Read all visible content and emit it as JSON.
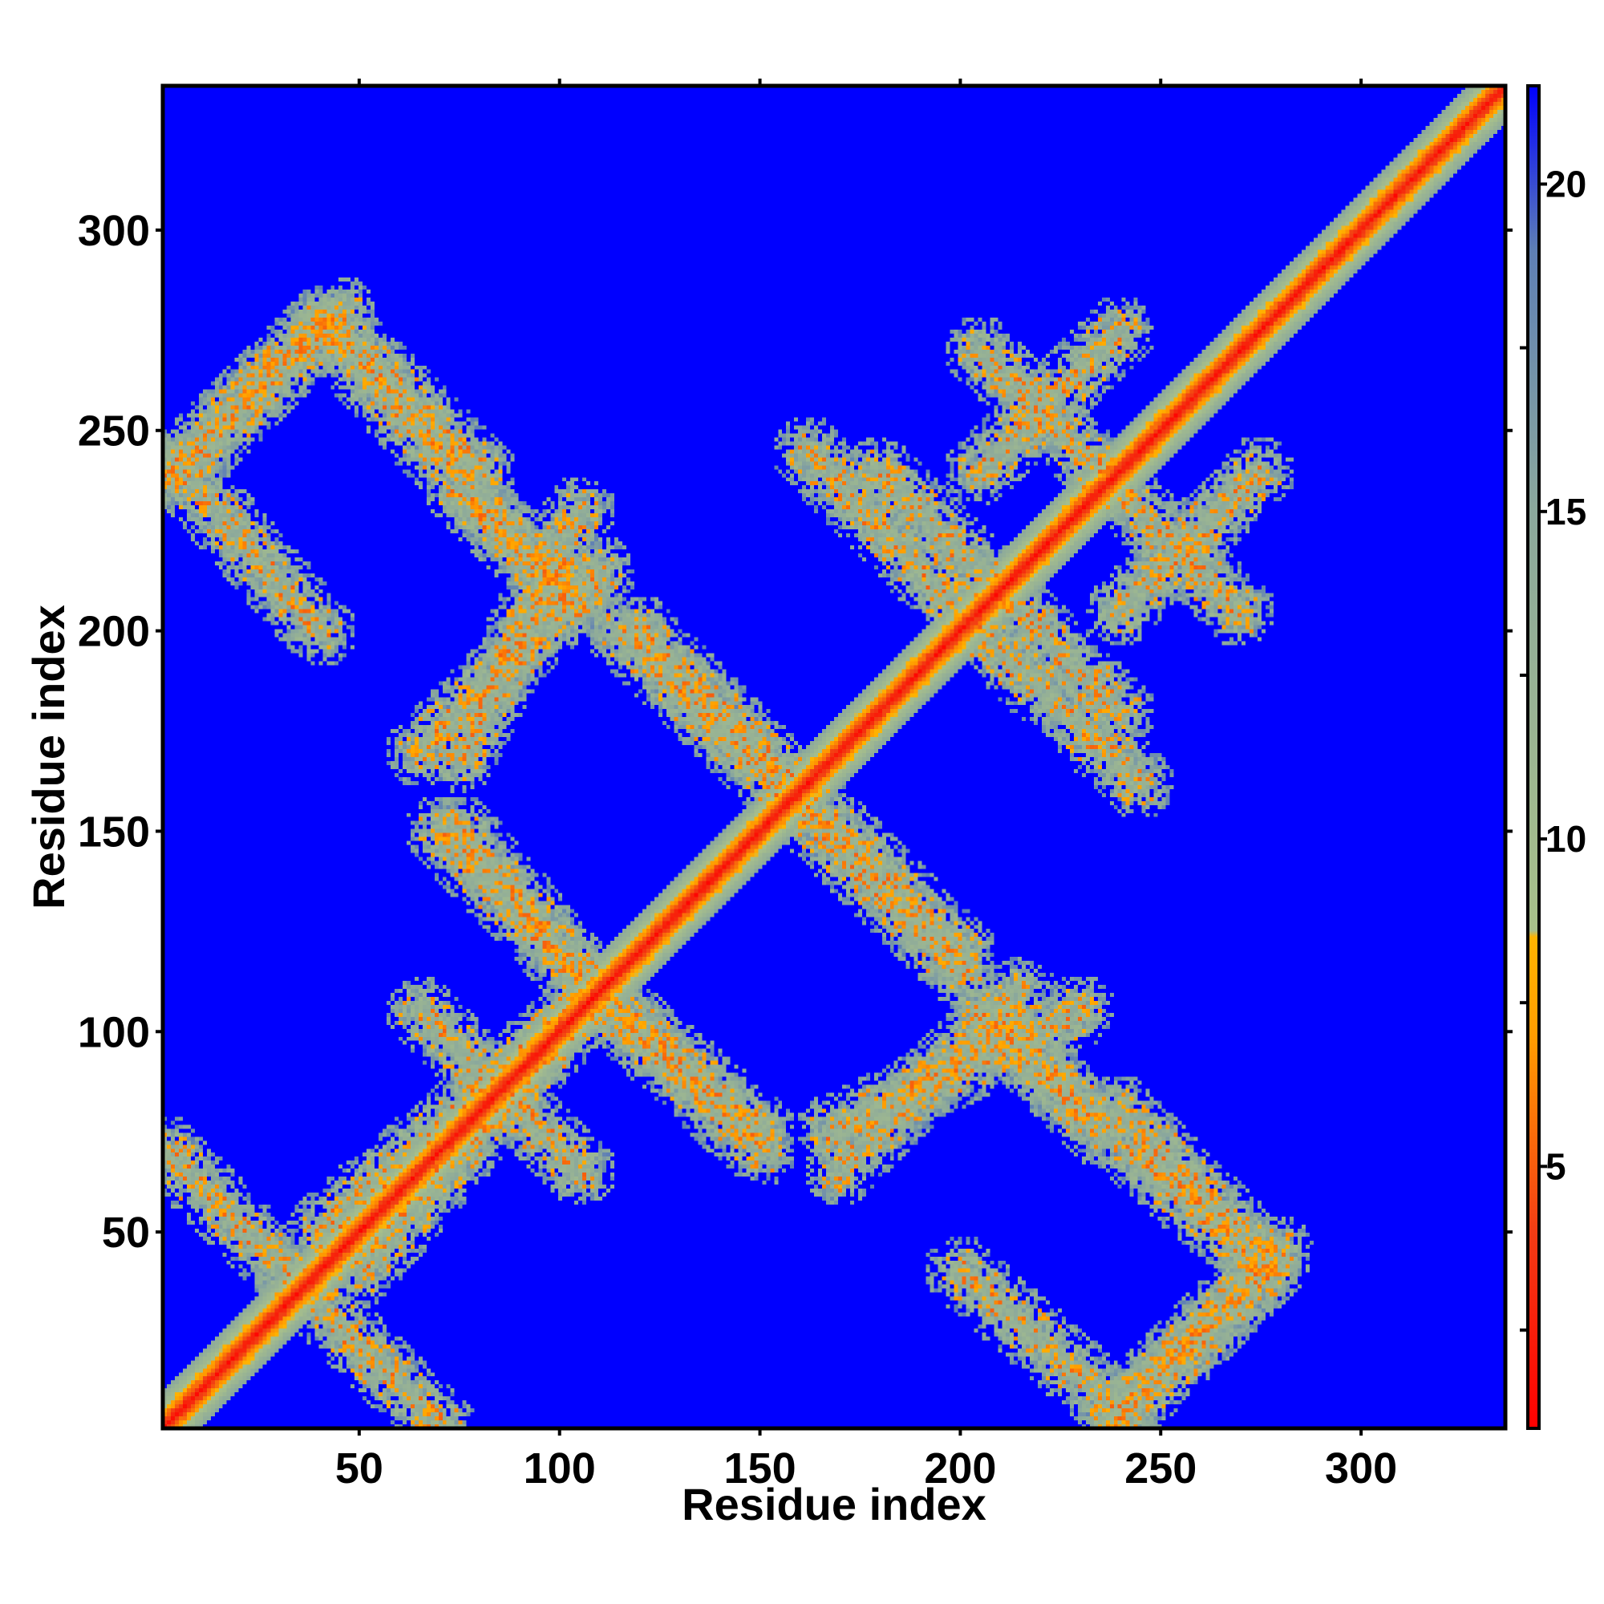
{
  "chart_data": {
    "type": "heatmap",
    "title": "",
    "xlabel": "Residue index",
    "ylabel": "Residue index",
    "xlim": [
      1,
      336
    ],
    "ylim": [
      1,
      336
    ],
    "x_ticks": [
      50,
      100,
      150,
      200,
      250,
      300
    ],
    "y_ticks": [
      50,
      100,
      150,
      200,
      250,
      300
    ],
    "x_tick_labels": [
      "50",
      "100",
      "150",
      "200",
      "250",
      "300"
    ],
    "y_tick_labels": [
      "50",
      "100",
      "150",
      "200",
      "250",
      "300"
    ],
    "colorbar": {
      "range": [
        1,
        21.5
      ],
      "ticks": [
        5,
        10,
        15,
        20
      ],
      "tick_labels": [
        "5",
        "10",
        "15",
        "20"
      ],
      "colors": [
        {
          "value": 1,
          "color": "#ff0000"
        },
        {
          "value": 4,
          "color": "#f23c14"
        },
        {
          "value": 7,
          "color": "#ff9d00"
        },
        {
          "value": 8.5,
          "color": "#ffb400"
        },
        {
          "value": 8.6,
          "color": "#a8c08a"
        },
        {
          "value": 15,
          "color": "#8ba89c"
        },
        {
          "value": 19,
          "color": "#5e7fb5"
        },
        {
          "value": 21.5,
          "color": "#0000ff"
        }
      ]
    },
    "background_value": 21.5,
    "diagonal": {
      "from": 1,
      "to": 336,
      "core_value": 2,
      "band_width": 7
    },
    "contact_bands": [
      {
        "i_start": 1,
        "i_end": 70,
        "j_start": 70,
        "j_end": 1
      },
      {
        "i_start": 40,
        "i_end": 1,
        "j_start": 277,
        "j_end": 238
      },
      {
        "i_start": 40,
        "i_end": 70,
        "j_start": 277,
        "j_end": 243
      },
      {
        "i_start": 65,
        "i_end": 105,
        "j_start": 105,
        "j_end": 65
      },
      {
        "i_start": 75,
        "i_end": 105,
        "j_start": 150,
        "j_end": 115
      },
      {
        "i_start": 40,
        "i_end": 110,
        "j_start": 50,
        "j_end": 110
      },
      {
        "i_start": 110,
        "i_end": 150,
        "j_start": 108,
        "j_end": 70
      },
      {
        "i_start": 65,
        "i_end": 110,
        "j_start": 170,
        "j_end": 215
      },
      {
        "i_start": 80,
        "i_end": 105,
        "j_start": 230,
        "j_end": 205
      },
      {
        "i_start": 120,
        "i_end": 160,
        "j_start": 200,
        "j_end": 160
      },
      {
        "i_start": 160,
        "i_end": 200,
        "j_start": 155,
        "j_end": 115
      },
      {
        "i_start": 168,
        "i_end": 230,
        "j_start": 75,
        "j_end": 105
      },
      {
        "i_start": 210,
        "i_end": 235,
        "j_start": 103,
        "j_end": 75
      },
      {
        "i_start": 180,
        "i_end": 220,
        "j_start": 240,
        "j_end": 200
      },
      {
        "i_start": 205,
        "i_end": 245,
        "j_start": 200,
        "j_end": 162
      },
      {
        "i_start": 205,
        "i_end": 270,
        "j_start": 270,
        "j_end": 205
      },
      {
        "i_start": 240,
        "i_end": 275,
        "j_start": 205,
        "j_end": 240
      },
      {
        "i_start": 240,
        "i_end": 280,
        "j_start": 5,
        "j_end": 45
      },
      {
        "i_start": 240,
        "i_end": 275,
        "j_start": 80,
        "j_end": 45
      },
      {
        "i_start": 200,
        "i_end": 240,
        "j_start": 40,
        "j_end": 5
      }
    ]
  }
}
